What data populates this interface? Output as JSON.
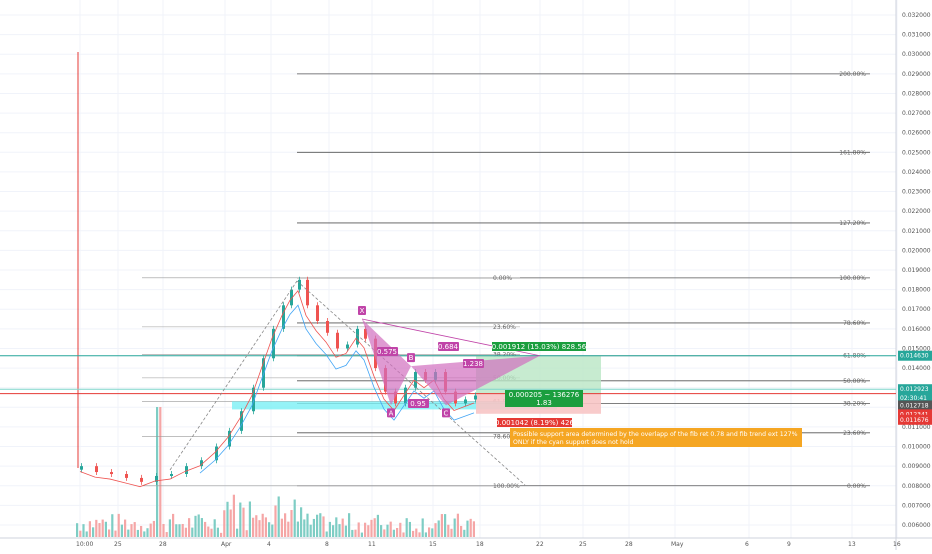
{
  "chart_data": {
    "type": "candlestick",
    "y_axis": {
      "position": "right",
      "scale": "linear",
      "ylim": [
        0.0058,
        0.0325
      ],
      "ticks": [
        "0.032000",
        "0.031000",
        "0.030000",
        "0.029000",
        "0.028000",
        "0.027000",
        "0.026000",
        "0.025000",
        "0.024000",
        "0.023000",
        "0.022000",
        "0.021000",
        "0.020000",
        "0.019000",
        "0.018000",
        "0.017000",
        "0.016000",
        "0.015000",
        "0.014000",
        "0.013000",
        "0.012000",
        "0.011000",
        "0.010000",
        "0.009000",
        "0.008000",
        "0.007000",
        "0.006000"
      ],
      "tick_values": [
        0.032,
        0.031,
        0.03,
        0.029,
        0.028,
        0.027,
        0.026,
        0.025,
        0.024,
        0.023,
        0.022,
        0.021,
        0.02,
        0.019,
        0.018,
        0.017,
        0.016,
        0.015,
        0.014,
        0.013,
        0.012,
        0.011,
        0.01,
        0.009,
        0.008,
        0.007,
        0.006
      ]
    },
    "x_axis": {
      "ticks": [
        "10:00",
        "25",
        "28",
        "Apr",
        "4",
        "8",
        "11",
        "15",
        "18",
        "22",
        "25",
        "28",
        "May",
        "6",
        "9",
        "13",
        "16"
      ]
    },
    "grid": true,
    "price_labels": [
      {
        "text": "0.014630",
        "value": 0.01463,
        "color": "#26a69a"
      },
      {
        "text": "0.012923",
        "value": 0.012923,
        "color": "#26a69a"
      },
      {
        "text": "02:30:41",
        "value": 0.012923,
        "color": "#26a69a"
      },
      {
        "text": "0.012718",
        "value": 0.012718,
        "color": "#555555"
      },
      {
        "text": "0.012341",
        "value": 0.012341,
        "color": "#e53935"
      },
      {
        "text": "0.011676",
        "value": 0.011676,
        "color": "#e53935"
      }
    ],
    "fib_upper": [
      {
        "label": "200.00%",
        "value": 0.029
      },
      {
        "label": "161.80%",
        "value": 0.025
      },
      {
        "label": "127.20%",
        "value": 0.0214
      },
      {
        "label": "100.00%",
        "value": 0.0186
      },
      {
        "label": "78.60%",
        "value": 0.0163
      },
      {
        "label": "61.80%",
        "value": 0.01463
      },
      {
        "label": "50.00%",
        "value": 0.01335
      },
      {
        "label": "38.20%",
        "value": 0.0122
      },
      {
        "label": "23.60%",
        "value": 0.0107
      },
      {
        "label": "0.00%",
        "value": 0.008
      }
    ],
    "fib_lower": [
      {
        "label": "0.00%",
        "value": 0.0186
      },
      {
        "label": "23.60%",
        "value": 0.0161
      },
      {
        "label": "38.20%",
        "value": 0.0147
      },
      {
        "label": "50.00%",
        "value": 0.0135
      },
      {
        "label": "61.80%",
        "value": 0.0123
      },
      {
        "label": "78.60%",
        "value": 0.0105
      },
      {
        "label": "100.00%",
        "value": 0.008
      }
    ],
    "harmonic_points": [
      {
        "label": "X",
        "value": 0.0165
      },
      {
        "label": "A",
        "value": 0.0121
      },
      {
        "label": "B",
        "value": 0.0141
      },
      {
        "label": "C",
        "value": 0.0121
      }
    ],
    "harmonic_ratios": [
      "0.575",
      "1.238",
      "0.684",
      "0.95"
    ],
    "position_labels": [
      {
        "text": "0.001912 (15.03%) 828.56",
        "color": "#1b9e3e"
      },
      {
        "text": "0.000205 ~ 136276",
        "color": "#1b9e3e"
      },
      {
        "text": "1.83",
        "color": "#1b9e3e"
      },
      {
        "text": "0.001042 (8.19%) 426",
        "color": "#e53935"
      }
    ],
    "annotation": {
      "lines": [
        "Possible support area determined by the overlapp of the fib ret 0.78 and fib trend ext 127%",
        "ONLY if the cyan support does not hold"
      ],
      "color": "#f5a623"
    }
  }
}
